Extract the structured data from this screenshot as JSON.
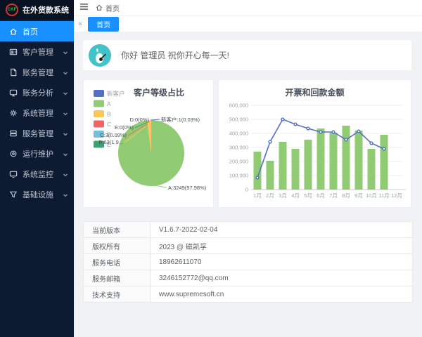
{
  "app": {
    "logo_text": "CKF",
    "title": "在外货款系统"
  },
  "colors": {
    "accent": "#1890ff",
    "sidebar_bg": "#0c1a32",
    "avatar_bg": "#43c3c9",
    "pie_palette": [
      "#5470c6",
      "#91cc75",
      "#fac858",
      "#ee6666",
      "#73c0de",
      "#3ba272"
    ],
    "bar_color": "#91cc75",
    "line_color": "#5470c6"
  },
  "topbar": {
    "breadcrumb_home": "首页"
  },
  "tabbar": {
    "active_tab": "首页",
    "scroll_left_glyph": "«"
  },
  "sidebar": {
    "items": [
      {
        "label": "首页",
        "icon": "home-icon",
        "active": true,
        "has_children": false
      },
      {
        "label": "客户管理",
        "icon": "customer-icon",
        "active": false,
        "has_children": true
      },
      {
        "label": "账务管理",
        "icon": "finance-icon",
        "active": false,
        "has_children": true
      },
      {
        "label": "账务分析",
        "icon": "analysis-icon",
        "active": false,
        "has_children": true
      },
      {
        "label": "系统管理",
        "icon": "gear-icon",
        "active": false,
        "has_children": true
      },
      {
        "label": "服务管理",
        "icon": "service-icon",
        "active": false,
        "has_children": true
      },
      {
        "label": "运行维护",
        "icon": "ops-icon",
        "active": false,
        "has_children": true
      },
      {
        "label": "系统监控",
        "icon": "monitor-icon",
        "active": false,
        "has_children": true
      },
      {
        "label": "基础设施",
        "icon": "infra-icon",
        "active": false,
        "has_children": true
      }
    ]
  },
  "greeting": {
    "text": "你好 管理员 祝你开心每一天!"
  },
  "chart_data": [
    {
      "type": "pie",
      "title": "客户等级占比",
      "legend_position": "left",
      "legend": [
        "新客户",
        "A",
        "B",
        "C",
        "D",
        "E"
      ],
      "series": [
        {
          "name": "新客户",
          "value": 1,
          "percent": "0.03%",
          "label": "新客户:1(0.03%)"
        },
        {
          "name": "A",
          "value": 3249,
          "percent": "97.98%",
          "label": "A:3249(97.98%)"
        },
        {
          "name": "B",
          "value": 63,
          "percent": "1.9%",
          "label": "B:63(1.9..."
        },
        {
          "name": "C",
          "value": 3,
          "percent": "0.09%",
          "label": "C:3(0.09%)"
        },
        {
          "name": "D",
          "value": 0,
          "percent": "0%",
          "label": "D:0(0%)"
        },
        {
          "name": "E",
          "value": 0,
          "percent": "0%",
          "label": "E:0(0%)"
        }
      ]
    },
    {
      "type": "bar",
      "title": "开票和回款金额",
      "categories": [
        "1月",
        "2月",
        "3月",
        "4月",
        "5月",
        "6月",
        "7月",
        "8月",
        "9月",
        "10月",
        "11月",
        "12月"
      ],
      "series": [
        {
          "name": "开票",
          "type": "bar",
          "values": [
            270000,
            205000,
            340000,
            290000,
            355000,
            435000,
            405000,
            455000,
            420000,
            290000,
            390000,
            0
          ]
        },
        {
          "name": "回款",
          "type": "line",
          "values": [
            85000,
            340000,
            500000,
            465000,
            435000,
            410000,
            410000,
            355000,
            415000,
            330000,
            290000,
            null
          ]
        }
      ],
      "ylim": [
        0,
        600000
      ],
      "ytick_interval": 100000,
      "grid": true,
      "legend_position": "none"
    }
  ],
  "info_table": {
    "rows": [
      {
        "label": "当前版本",
        "value": "V1.6.7-2022-02-04"
      },
      {
        "label": "版权所有",
        "value": "2023 @ 磁凯孚"
      },
      {
        "label": "服务电话",
        "value": "18962611070"
      },
      {
        "label": "服务邮箱",
        "value": "3246152772@qq.com"
      },
      {
        "label": "技术支持",
        "value": "www.supremesoft.cn"
      }
    ]
  }
}
